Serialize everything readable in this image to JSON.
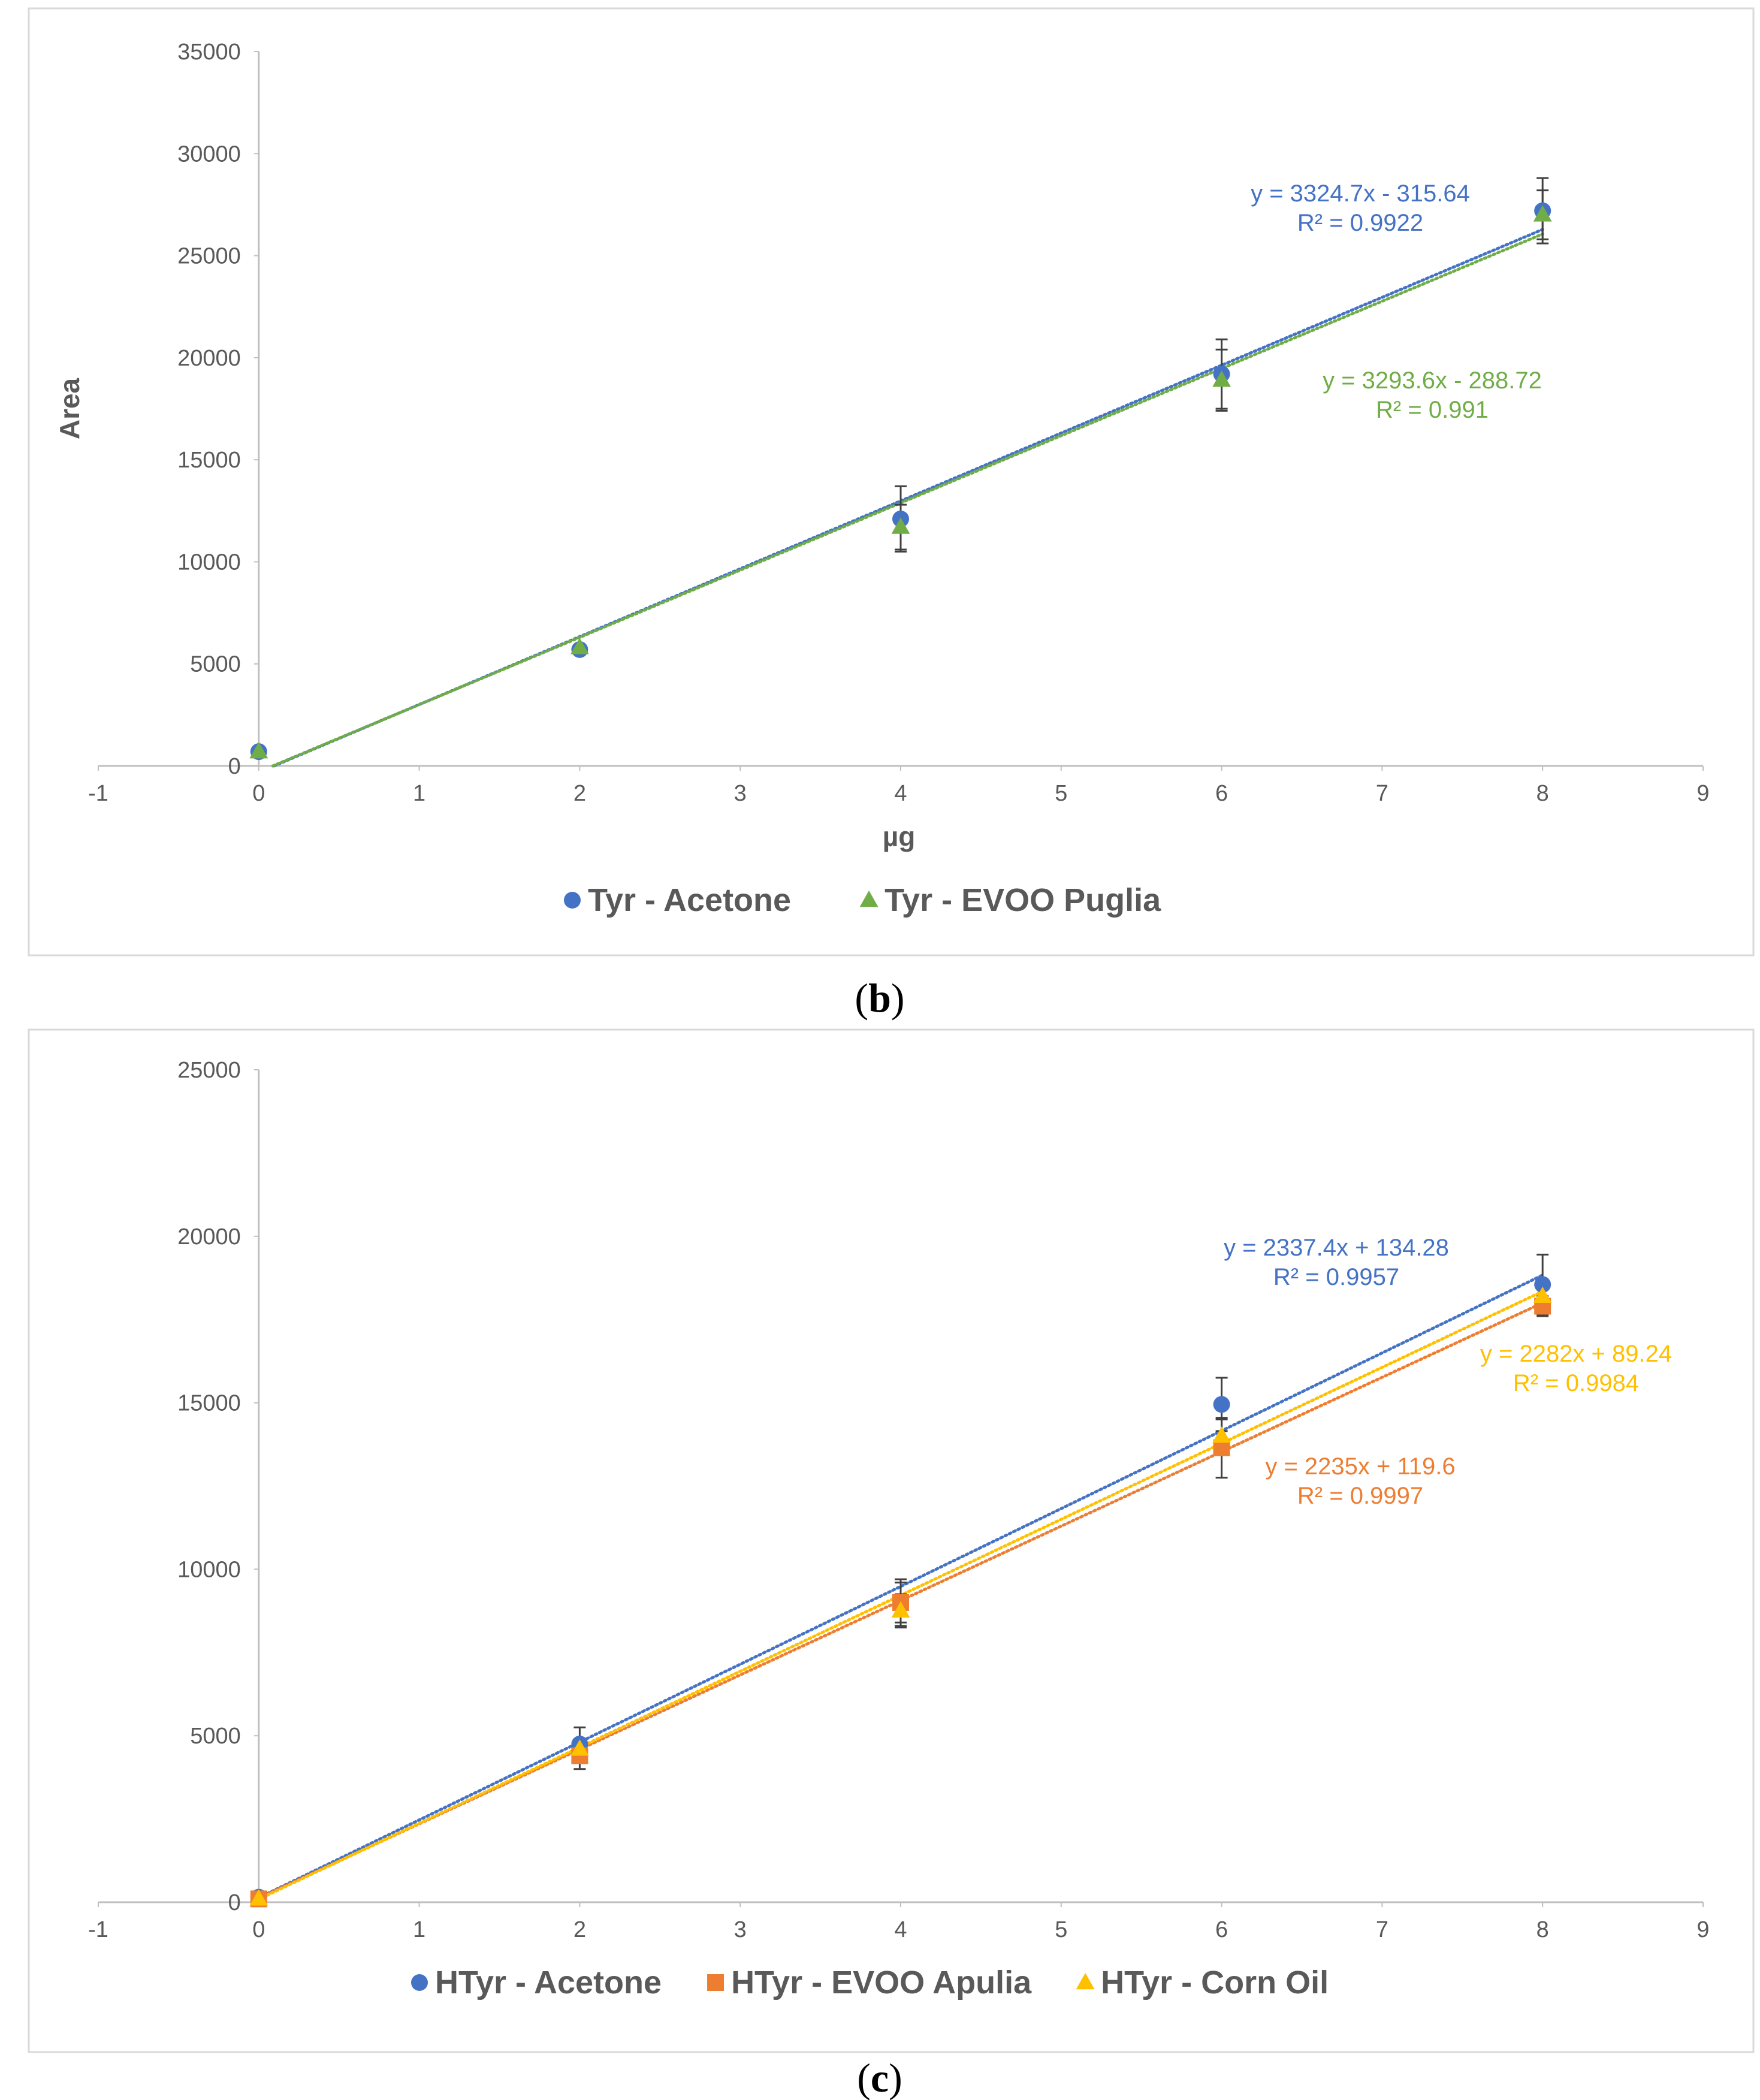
{
  "chart_data": [
    {
      "id": "b",
      "type": "scatter",
      "caption_letter": "b",
      "xlabel": "µg",
      "ylabel": "Area",
      "xlim": [
        -1,
        9
      ],
      "ylim": [
        0,
        35000
      ],
      "x_ticks": [
        -1,
        0,
        1,
        2,
        3,
        4,
        5,
        6,
        7,
        8,
        9
      ],
      "y_ticks": [
        0,
        5000,
        10000,
        15000,
        20000,
        25000,
        30000,
        35000
      ],
      "series": [
        {
          "name": "Tyr - Acetone",
          "color": "#4472C4",
          "marker": "circle",
          "x": [
            0,
            2,
            4,
            6,
            8
          ],
          "y": [
            700,
            5700,
            12100,
            19200,
            27200
          ],
          "error": [
            0,
            0,
            1600,
            1700,
            1600
          ],
          "trendline": {
            "slope": 3324.7,
            "intercept": -315.64,
            "equation": "y = 3324.7x - 315.64",
            "r2": "R² = 0.9922"
          }
        },
        {
          "name": "Tyr - EVOO Puglia",
          "color": "#70AD47",
          "marker": "triangle",
          "x": [
            0,
            2,
            4,
            6,
            8
          ],
          "y": [
            700,
            5800,
            11700,
            18900,
            27000
          ],
          "error": [
            0,
            0,
            1100,
            1500,
            1200
          ],
          "trendline": {
            "slope": 3293.6,
            "intercept": -288.72,
            "equation": "y = 3293.6x - 288.72",
            "r2": "R² = 0.991"
          }
        }
      ]
    },
    {
      "id": "c",
      "type": "scatter",
      "caption_letter": "c",
      "xlabel": "",
      "ylabel": "",
      "xlim": [
        -1,
        9
      ],
      "ylim": [
        0,
        25000
      ],
      "x_ticks": [
        -1,
        0,
        1,
        2,
        3,
        4,
        5,
        6,
        7,
        8,
        9
      ],
      "y_ticks": [
        0,
        5000,
        10000,
        15000,
        20000,
        25000
      ],
      "series": [
        {
          "name": "HTyr - Acetone",
          "color": "#4472C4",
          "marker": "circle",
          "x": [
            0,
            2,
            4,
            6,
            8
          ],
          "y": [
            150,
            4750,
            9000,
            14950,
            18550
          ],
          "error": [
            0,
            500,
            700,
            800,
            900
          ],
          "trendline": {
            "slope": 2337.4,
            "intercept": 134.28,
            "equation": "y = 2337.4x + 134.28",
            "r2": "R² = 0.9957"
          }
        },
        {
          "name": "HTyr - EVOO Apulia",
          "color": "#ED7D31",
          "marker": "square",
          "x": [
            0,
            2,
            4,
            6,
            8
          ],
          "y": [
            100,
            4400,
            9000,
            13650,
            17900
          ],
          "error": [
            0,
            400,
            600,
            900,
            300
          ],
          "trendline": {
            "slope": 2235,
            "intercept": 119.6,
            "equation": "y = 2235x + 119.6",
            "r2": "R² = 0.9997"
          }
        },
        {
          "name": "HTyr - Corn Oil",
          "color": "#FFC000",
          "marker": "triangle",
          "x": [
            0,
            2,
            4,
            6,
            8
          ],
          "y": [
            100,
            4600,
            8750,
            14000,
            18200
          ],
          "error": [
            0,
            300,
            500,
            500,
            300
          ],
          "trendline": {
            "slope": 2282,
            "intercept": 89.24,
            "equation": "y = 2282x + 89.24",
            "r2": "R² = 0.9984"
          }
        }
      ]
    }
  ]
}
